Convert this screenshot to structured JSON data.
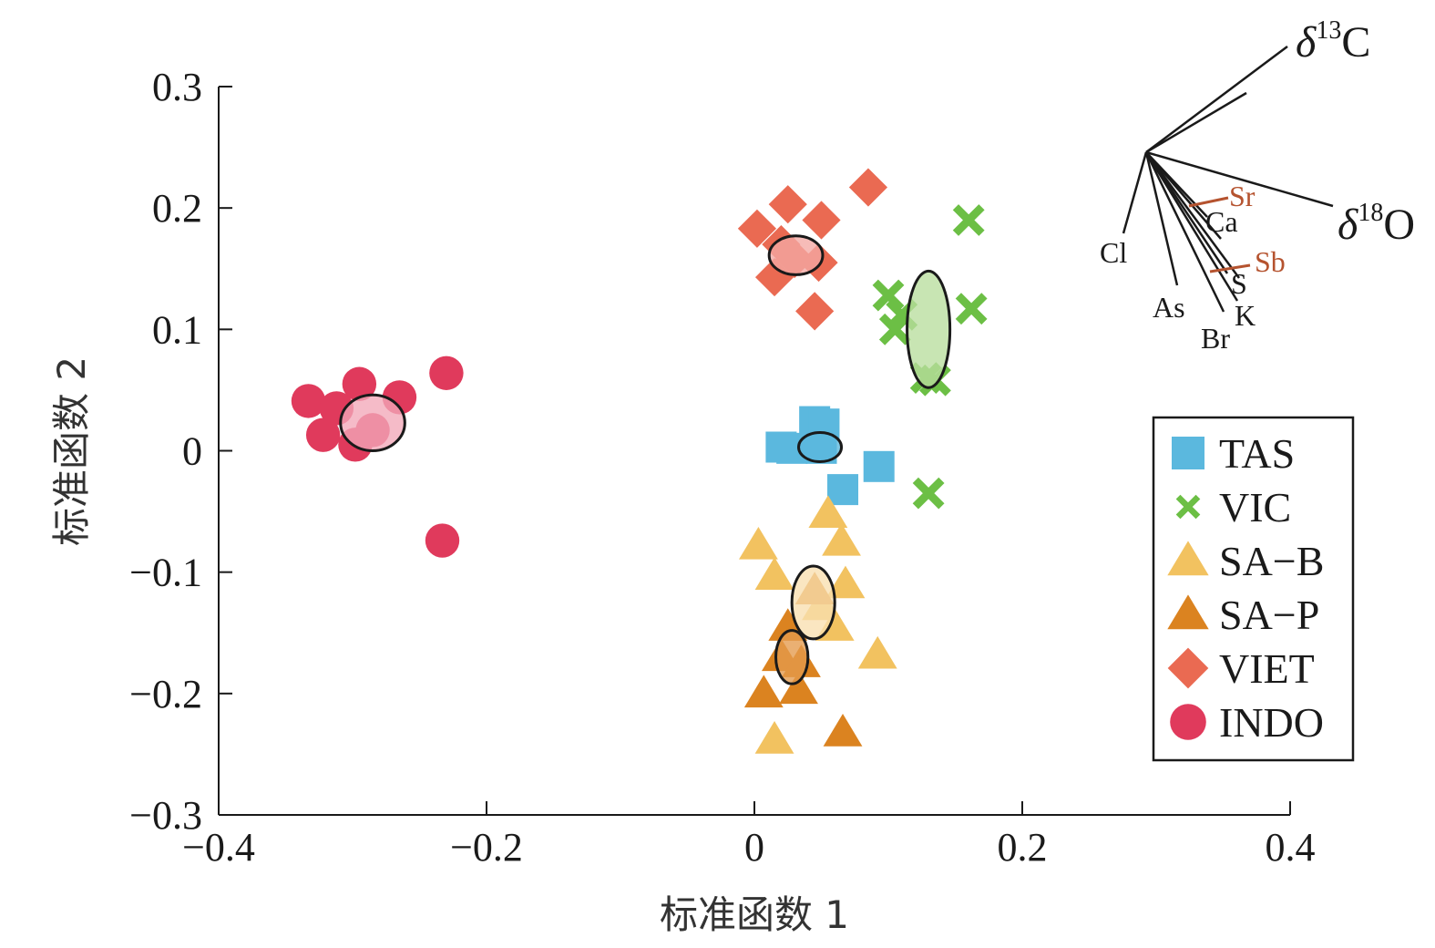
{
  "chart_data": {
    "type": "scatter",
    "xlabel": "标准函数 1",
    "ylabel": "标准函数 2",
    "xlim": [
      -0.4,
      0.4
    ],
    "ylim": [
      -0.3,
      0.3
    ],
    "xticks": [
      "−0.4",
      "−0.2",
      "0",
      "0.2",
      "0.4"
    ],
    "yticks": [
      "−0.3",
      "−0.2",
      "−0.1",
      "0",
      "0.1",
      "0.2",
      "0.3"
    ],
    "xtick_values": [
      -0.4,
      -0.2,
      0,
      0.2,
      0.4
    ],
    "ytick_values": [
      -0.3,
      -0.2,
      -0.1,
      0,
      0.1,
      0.2,
      0.3
    ],
    "grid": false,
    "legend_position": "right",
    "series": [
      {
        "name": "TAS",
        "marker": "square",
        "color": "#5BB8DE",
        "points": [
          [
            0.045,
            0.024
          ],
          [
            0.052,
            0.022
          ],
          [
            0.02,
            0.003
          ],
          [
            0.028,
            0.002
          ],
          [
            0.05,
            0.002
          ],
          [
            0.093,
            -0.013
          ],
          [
            0.066,
            -0.032
          ]
        ],
        "ellipse": {
          "center": [
            0.049,
            0.003
          ],
          "radius": [
            0.016,
            0.012
          ],
          "fill": "#5BB8DE"
        }
      },
      {
        "name": "VIC",
        "marker": "x",
        "color": "#6CBF45",
        "points": [
          [
            0.16,
            0.19
          ],
          [
            0.1,
            0.128
          ],
          [
            0.11,
            0.112
          ],
          [
            0.105,
            0.1
          ],
          [
            0.162,
            0.117
          ],
          [
            0.128,
            0.06
          ],
          [
            0.135,
            0.058
          ],
          [
            0.13,
            -0.035
          ]
        ],
        "ellipse": {
          "center": [
            0.13,
            0.1
          ],
          "radius": [
            0.016,
            0.048
          ],
          "fill": "#B8DE9E"
        }
      },
      {
        "name": "SA−B",
        "marker": "triangle",
        "color": "#F2C260",
        "points": [
          [
            0.055,
            -0.052
          ],
          [
            0.003,
            -0.078
          ],
          [
            0.065,
            -0.075
          ],
          [
            0.015,
            -0.103
          ],
          [
            0.068,
            -0.11
          ],
          [
            0.05,
            -0.128
          ],
          [
            0.06,
            -0.145
          ],
          [
            0.092,
            -0.168
          ],
          [
            0.015,
            -0.238
          ]
        ],
        "ellipse": {
          "center": [
            0.044,
            -0.125
          ],
          "radius": [
            0.016,
            0.03
          ],
          "fill": "#F8DFB0"
        }
      },
      {
        "name": "SA−P",
        "marker": "triangle",
        "color": "#DB8320",
        "points": [
          [
            0.025,
            -0.145
          ],
          [
            0.045,
            -0.115
          ],
          [
            0.02,
            -0.17
          ],
          [
            0.035,
            -0.175
          ],
          [
            0.007,
            -0.2
          ],
          [
            0.033,
            -0.197
          ],
          [
            0.066,
            -0.232
          ]
        ],
        "ellipse": {
          "center": [
            0.028,
            -0.17
          ],
          "radius": [
            0.012,
            0.022
          ],
          "fill": "#E49A4C"
        }
      },
      {
        "name": "VIET",
        "marker": "diamond",
        "color": "#EA6A52",
        "points": [
          [
            0.085,
            0.217
          ],
          [
            0.025,
            0.203
          ],
          [
            0.05,
            0.19
          ],
          [
            0.002,
            0.183
          ],
          [
            0.02,
            0.17
          ],
          [
            0.03,
            0.158
          ],
          [
            0.048,
            0.155
          ],
          [
            0.015,
            0.143
          ],
          [
            0.045,
            0.115
          ]
        ],
        "ellipse": {
          "center": [
            0.031,
            0.161
          ],
          "radius": [
            0.02,
            0.016
          ],
          "fill": "#F4A9A4"
        }
      },
      {
        "name": "INDO",
        "marker": "circle",
        "color": "#E03A5C",
        "points": [
          [
            -0.23,
            0.064
          ],
          [
            -0.295,
            0.055
          ],
          [
            -0.265,
            0.044
          ],
          [
            -0.333,
            0.041
          ],
          [
            -0.312,
            0.035
          ],
          [
            -0.285,
            0.017
          ],
          [
            -0.322,
            0.013
          ],
          [
            -0.298,
            0.005
          ],
          [
            -0.233,
            -0.074
          ]
        ],
        "ellipse": {
          "center": [
            -0.285,
            0.023
          ],
          "radius": [
            0.024,
            0.023
          ],
          "fill": "#F2A8B8"
        }
      }
    ],
    "biplot": {
      "vectors": [
        {
          "label": "δ13C",
          "color": "#1a1a1a"
        },
        {
          "label": "δ18O",
          "color": "#1a1a1a"
        },
        {
          "label": "Sr",
          "color": "#B5532F"
        },
        {
          "label": "Ca",
          "color": "#1a1a1a"
        },
        {
          "label": "Sb",
          "color": "#B5532F"
        },
        {
          "label": "S",
          "color": "#1a1a1a"
        },
        {
          "label": "K",
          "color": "#1a1a1a"
        },
        {
          "label": "Br",
          "color": "#1a1a1a"
        },
        {
          "label": "As",
          "color": "#1a1a1a"
        },
        {
          "label": "Cl",
          "color": "#1a1a1a"
        }
      ],
      "delta13C": {
        "symbol": "δ",
        "sup": "13",
        "base": "C"
      },
      "delta18O": {
        "symbol": "δ",
        "sup": "18",
        "base": "O"
      }
    }
  }
}
